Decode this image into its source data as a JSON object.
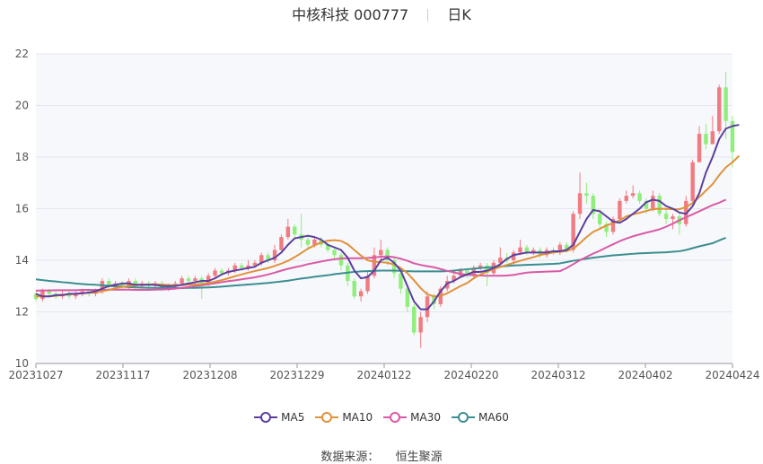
{
  "header": {
    "title": "中核科技 000777",
    "period": "日K"
  },
  "source": {
    "label": "数据来源：",
    "value": "恒生聚源"
  },
  "chart_data": {
    "type": "candlestick",
    "ylim": [
      10,
      22
    ],
    "yticks": [
      10,
      12,
      14,
      16,
      18,
      20,
      22
    ],
    "xtick_labels": [
      "20231027",
      "20231117",
      "20231208",
      "20231229",
      "20240122",
      "20240220",
      "20240312",
      "20240402",
      "20240424"
    ],
    "colors": {
      "up": "#f07c82",
      "down": "#90ee7c",
      "ma5": "#5b3f9e",
      "ma10": "#e0913a",
      "ma30": "#d95aa5",
      "ma60": "#3b8e90"
    },
    "grid": true,
    "legend_position": "bottom",
    "candles": [
      [
        12.7,
        12.5,
        12.8,
        12.4
      ],
      [
        12.5,
        12.8,
        12.9,
        12.4
      ],
      [
        12.8,
        12.7,
        12.9,
        12.6
      ],
      [
        12.7,
        12.6,
        12.8,
        12.5
      ],
      [
        12.6,
        12.7,
        12.8,
        12.5
      ],
      [
        12.7,
        12.6,
        12.8,
        12.5
      ],
      [
        12.6,
        12.7,
        12.8,
        12.5
      ],
      [
        12.7,
        12.8,
        12.9,
        12.6
      ],
      [
        12.8,
        12.7,
        12.9,
        12.6
      ],
      [
        12.7,
        12.8,
        12.9,
        12.6
      ],
      [
        12.8,
        13.2,
        13.3,
        12.7
      ],
      [
        13.2,
        13.0,
        13.3,
        12.9
      ],
      [
        13.0,
        13.1,
        13.2,
        12.9
      ],
      [
        13.1,
        13.0,
        13.2,
        12.9
      ],
      [
        13.0,
        13.2,
        13.3,
        12.9
      ],
      [
        13.2,
        13.0,
        13.3,
        12.9
      ],
      [
        13.0,
        13.1,
        13.2,
        12.9
      ],
      [
        13.1,
        13.0,
        13.2,
        12.9
      ],
      [
        13.0,
        13.1,
        13.2,
        12.9
      ],
      [
        13.1,
        12.9,
        13.2,
        12.8
      ],
      [
        12.9,
        13.0,
        13.1,
        12.8
      ],
      [
        13.0,
        13.1,
        13.2,
        12.9
      ],
      [
        13.1,
        13.3,
        13.4,
        13.0
      ],
      [
        13.3,
        13.2,
        13.4,
        13.1
      ],
      [
        13.2,
        13.3,
        13.4,
        13.1
      ],
      [
        13.3,
        13.1,
        13.4,
        12.5
      ],
      [
        13.1,
        13.4,
        13.5,
        13.0
      ],
      [
        13.4,
        13.6,
        13.7,
        13.3
      ],
      [
        13.6,
        13.5,
        13.7,
        13.4
      ],
      [
        13.5,
        13.6,
        13.7,
        13.4
      ],
      [
        13.6,
        13.8,
        13.9,
        13.5
      ],
      [
        13.8,
        13.7,
        13.9,
        13.6
      ],
      [
        13.7,
        13.8,
        14.0,
        13.6
      ],
      [
        13.8,
        13.9,
        14.0,
        13.7
      ],
      [
        13.9,
        14.2,
        14.3,
        13.8
      ],
      [
        14.2,
        14.0,
        14.3,
        13.9
      ],
      [
        14.0,
        14.4,
        14.6,
        13.9
      ],
      [
        14.4,
        14.9,
        15.0,
        14.3
      ],
      [
        14.9,
        15.3,
        15.6,
        14.8
      ],
      [
        15.3,
        15.0,
        15.4,
        14.8
      ],
      [
        15.0,
        14.8,
        15.8,
        14.5
      ],
      [
        14.8,
        14.6,
        15.0,
        14.4
      ],
      [
        14.6,
        14.8,
        14.9,
        14.5
      ],
      [
        14.8,
        14.6,
        14.9,
        14.5
      ],
      [
        14.6,
        14.4,
        14.7,
        14.3
      ],
      [
        14.4,
        14.2,
        14.5,
        14.0
      ],
      [
        14.2,
        13.8,
        14.3,
        13.6
      ],
      [
        13.8,
        13.2,
        13.9,
        13.0
      ],
      [
        13.2,
        12.6,
        13.3,
        12.5
      ],
      [
        12.6,
        12.8,
        12.9,
        12.4
      ],
      [
        12.8,
        13.4,
        13.6,
        12.7
      ],
      [
        13.4,
        14.2,
        14.5,
        13.3
      ],
      [
        14.2,
        14.4,
        14.8,
        14.0
      ],
      [
        14.4,
        14.0,
        14.5,
        13.8
      ],
      [
        14.0,
        13.5,
        14.1,
        13.3
      ],
      [
        13.5,
        12.9,
        13.6,
        12.7
      ],
      [
        12.9,
        12.2,
        13.0,
        12.0
      ],
      [
        12.2,
        11.2,
        12.3,
        11.1
      ],
      [
        11.2,
        11.8,
        12.0,
        10.6
      ],
      [
        11.8,
        12.6,
        12.8,
        11.6
      ],
      [
        12.6,
        12.3,
        12.7,
        12.1
      ],
      [
        12.3,
        12.9,
        13.0,
        12.2
      ],
      [
        12.9,
        13.2,
        13.4,
        12.8
      ],
      [
        13.2,
        13.4,
        13.6,
        13.1
      ],
      [
        13.4,
        13.6,
        13.7,
        13.3
      ],
      [
        13.6,
        13.4,
        13.7,
        13.3
      ],
      [
        13.4,
        13.7,
        13.8,
        13.3
      ],
      [
        13.7,
        13.8,
        13.9,
        13.6
      ],
      [
        13.8,
        13.5,
        13.9,
        13.0
      ],
      [
        13.5,
        13.9,
        14.0,
        13.4
      ],
      [
        13.9,
        14.1,
        14.5,
        13.8
      ],
      [
        14.1,
        14.0,
        14.3,
        13.9
      ],
      [
        14.0,
        14.3,
        14.4,
        13.9
      ],
      [
        14.3,
        14.5,
        14.8,
        14.2
      ],
      [
        14.5,
        14.3,
        14.6,
        14.2
      ],
      [
        14.3,
        14.4,
        14.5,
        14.2
      ],
      [
        14.4,
        14.2,
        14.5,
        14.1
      ],
      [
        14.2,
        14.4,
        14.5,
        14.1
      ],
      [
        14.4,
        14.3,
        14.5,
        14.2
      ],
      [
        14.3,
        14.6,
        14.7,
        14.2
      ],
      [
        14.6,
        14.4,
        14.7,
        14.3
      ],
      [
        14.4,
        15.8,
        15.9,
        14.3
      ],
      [
        15.8,
        16.6,
        17.4,
        15.6
      ],
      [
        16.6,
        16.5,
        17.0,
        16.2
      ],
      [
        16.5,
        15.8,
        16.6,
        15.6
      ],
      [
        15.8,
        15.4,
        16.0,
        15.2
      ],
      [
        15.4,
        15.1,
        15.5,
        14.9
      ],
      [
        15.1,
        15.6,
        15.7,
        15.0
      ],
      [
        15.6,
        16.3,
        16.4,
        15.5
      ],
      [
        16.3,
        16.5,
        16.7,
        16.2
      ],
      [
        16.5,
        16.6,
        16.9,
        16.4
      ],
      [
        16.6,
        16.3,
        16.7,
        16.2
      ],
      [
        16.3,
        16.0,
        16.4,
        15.8
      ],
      [
        16.0,
        16.5,
        16.7,
        15.9
      ],
      [
        16.5,
        15.8,
        16.6,
        15.7
      ],
      [
        15.8,
        15.6,
        16.0,
        15.4
      ],
      [
        15.6,
        15.7,
        15.8,
        15.2
      ],
      [
        15.7,
        15.4,
        15.9,
        15.0
      ],
      [
        15.4,
        16.3,
        16.5,
        15.3
      ],
      [
        16.3,
        17.8,
        17.9,
        16.2
      ],
      [
        17.8,
        18.9,
        19.2,
        17.8
      ],
      [
        18.9,
        18.5,
        19.3,
        18.3
      ],
      [
        18.5,
        19.0,
        19.6,
        18.6
      ],
      [
        19.0,
        20.7,
        20.8,
        18.9
      ],
      [
        20.7,
        19.4,
        21.3,
        18.7
      ],
      [
        19.4,
        18.2,
        19.6,
        17.6
      ]
    ],
    "ma5": [
      12.7,
      12.6,
      12.6,
      12.65,
      12.65,
      12.7,
      12.7,
      12.72,
      12.75,
      12.8,
      12.9,
      13.0,
      13.05,
      13.1,
      13.1,
      13.05,
      13.05,
      13.05,
      13.05,
      13.0,
      13.0,
      13.0,
      13.05,
      13.1,
      13.15,
      13.2,
      13.2,
      13.3,
      13.45,
      13.55,
      13.6,
      13.65,
      13.7,
      13.75,
      13.9,
      14.0,
      14.1,
      14.3,
      14.6,
      14.85,
      14.9,
      14.95,
      14.9,
      14.8,
      14.6,
      14.5,
      14.4,
      14.1,
      13.6,
      13.3,
      13.35,
      13.6,
      14.0,
      14.1,
      13.9,
      13.6,
      13.0,
      12.4,
      12.1,
      12.1,
      12.4,
      12.8,
      13.1,
      13.2,
      13.35,
      13.45,
      13.55,
      13.55,
      13.6,
      13.7,
      13.85,
      14.05,
      14.2,
      14.25,
      14.3,
      14.3,
      14.3,
      14.3,
      14.35,
      14.35,
      14.4,
      14.6,
      15.1,
      15.6,
      15.95,
      15.9,
      15.7,
      15.5,
      15.45,
      15.6,
      15.8,
      16.0,
      16.25,
      16.35,
      16.3,
      16.1,
      16.0,
      15.85,
      15.8,
      16.1,
      16.6,
      17.4,
      18.0,
      18.7,
      19.1,
      19.2,
      19.25
    ],
    "ma10": [
      12.6,
      12.6,
      12.6,
      12.62,
      12.65,
      12.68,
      12.7,
      12.72,
      12.74,
      12.75,
      12.8,
      12.85,
      12.92,
      12.97,
      13.0,
      13.03,
      13.05,
      13.06,
      13.07,
      13.06,
      13.04,
      13.03,
      13.04,
      13.05,
      13.06,
      13.08,
      13.12,
      13.17,
      13.23,
      13.3,
      13.38,
      13.45,
      13.52,
      13.58,
      13.64,
      13.7,
      13.78,
      13.87,
      13.98,
      14.12,
      14.28,
      14.45,
      14.58,
      14.69,
      14.76,
      14.78,
      14.75,
      14.62,
      14.4,
      14.18,
      14.0,
      13.94,
      13.93,
      13.9,
      13.84,
      13.7,
      13.5,
      13.22,
      12.92,
      12.68,
      12.6,
      12.62,
      12.72,
      12.86,
      13.0,
      13.12,
      13.3,
      13.45,
      13.56,
      13.66,
      13.74,
      13.82,
      13.9,
      13.98,
      14.05,
      14.12,
      14.2,
      14.26,
      14.3,
      14.33,
      14.36,
      14.45,
      14.66,
      14.9,
      15.1,
      15.22,
      15.35,
      15.44,
      15.55,
      15.7,
      15.78,
      15.84,
      15.91,
      15.98,
      16.0,
      15.99,
      15.98,
      15.98,
      16.06,
      16.22,
      16.45,
      16.7,
      16.95,
      17.3,
      17.6,
      17.8,
      18.05
    ],
    "ma30": [
      12.82,
      12.83,
      12.83,
      12.84,
      12.84,
      12.84,
      12.84,
      12.85,
      12.85,
      12.85,
      12.85,
      12.86,
      12.86,
      12.86,
      12.86,
      12.85,
      12.85,
      12.85,
      12.86,
      12.87,
      12.88,
      12.9,
      12.93,
      12.96,
      13.0,
      13.03,
      13.07,
      13.11,
      13.15,
      13.19,
      13.22,
      13.26,
      13.3,
      13.34,
      13.39,
      13.45,
      13.52,
      13.6,
      13.67,
      13.73,
      13.78,
      13.85,
      13.9,
      13.95,
      14.0,
      14.04,
      14.07,
      14.08,
      14.08,
      14.08,
      14.09,
      14.11,
      14.14,
      14.15,
      14.12,
      14.06,
      13.98,
      13.88,
      13.82,
      13.77,
      13.73,
      13.66,
      13.59,
      13.53,
      13.47,
      13.44,
      13.42,
      13.41,
      13.4,
      13.4,
      13.4,
      13.41,
      13.43,
      13.48,
      13.52,
      13.54,
      13.55,
      13.56,
      13.57,
      13.58,
      13.7,
      13.85,
      14.0,
      14.13,
      14.26,
      14.37,
      14.5,
      14.62,
      14.74,
      14.84,
      14.93,
      15.0,
      15.07,
      15.13,
      15.2,
      15.3,
      15.42,
      15.55,
      15.67,
      15.78,
      15.9,
      16.02,
      16.14,
      16.23,
      16.35
    ],
    "ma60": [
      13.26,
      13.23,
      13.2,
      13.18,
      13.15,
      13.13,
      13.1,
      13.08,
      13.06,
      13.05,
      13.03,
      13.01,
      12.99,
      12.98,
      12.96,
      12.95,
      12.94,
      12.93,
      12.93,
      12.92,
      12.92,
      12.92,
      12.92,
      12.93,
      12.93,
      12.94,
      12.95,
      12.96,
      12.98,
      13.0,
      13.02,
      13.04,
      13.06,
      13.08,
      13.1,
      13.12,
      13.15,
      13.18,
      13.21,
      13.25,
      13.29,
      13.32,
      13.36,
      13.39,
      13.42,
      13.46,
      13.49,
      13.52,
      13.55,
      13.57,
      13.58,
      13.59,
      13.6,
      13.6,
      13.6,
      13.59,
      13.58,
      13.57,
      13.57,
      13.57,
      13.57,
      13.57,
      13.58,
      13.6,
      13.63,
      13.65,
      13.68,
      13.7,
      13.72,
      13.74,
      13.76,
      13.78,
      13.8,
      13.81,
      13.82,
      13.83,
      13.84,
      13.85,
      13.86,
      13.88,
      13.93,
      13.98,
      14.02,
      14.06,
      14.1,
      14.13,
      14.16,
      14.19,
      14.21,
      14.23,
      14.25,
      14.27,
      14.28,
      14.29,
      14.3,
      14.31,
      14.33,
      14.35,
      14.4,
      14.47,
      14.54,
      14.6,
      14.66,
      14.77,
      14.87
    ]
  },
  "legend": [
    {
      "key": "ma5",
      "label": "MA5"
    },
    {
      "key": "ma10",
      "label": "MA10"
    },
    {
      "key": "ma30",
      "label": "MA30"
    },
    {
      "key": "ma60",
      "label": "MA60"
    }
  ]
}
